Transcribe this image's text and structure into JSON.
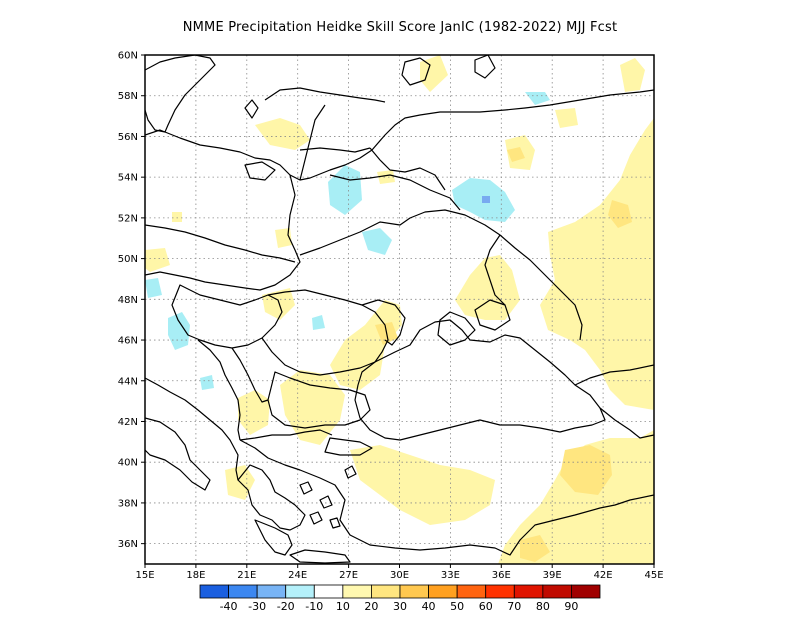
{
  "title": "NMME  Precipitation Heidke Skill Score JanIC (1982-2022) MJJ Fcst",
  "map": {
    "lon_range": [
      15,
      45
    ],
    "lat_range": [
      35,
      60
    ],
    "lon_ticks": [
      "15E",
      "18E",
      "21E",
      "24E",
      "27E",
      "30E",
      "33E",
      "36E",
      "39E",
      "42E",
      "45E"
    ],
    "lat_ticks": [
      "36N",
      "38N",
      "40N",
      "42N",
      "44N",
      "46N",
      "48N",
      "50N",
      "52N",
      "54N",
      "56N",
      "58N",
      "60N"
    ],
    "gridlines": true,
    "colors": {
      "land_outline": "#000000",
      "skill_10_20": "#fff6a8",
      "skill_20_30": "#ffe680",
      "skill_neg_10_20": "#a8eef5",
      "skill_neg_20_30": "#78aaf0"
    },
    "skill_areas": [
      {
        "name": "turkey-east-positive",
        "level": "10-20"
      },
      {
        "name": "russia-southeast-positive",
        "level": "10-20"
      },
      {
        "name": "volga-positive-core",
        "level": "20-30"
      },
      {
        "name": "belarus-negative",
        "level": "-10--20"
      },
      {
        "name": "bryansk-negative-core",
        "level": "-20--30"
      }
    ]
  },
  "colorbar": {
    "labels": [
      "-40",
      "-30",
      "-20",
      "-10",
      "10",
      "20",
      "30",
      "40",
      "50",
      "60",
      "70",
      "80",
      "90"
    ],
    "colors": [
      "#1a5fe0",
      "#3c87f0",
      "#78b4f5",
      "#b4f0fa",
      "#ffffff",
      "#fff8b0",
      "#ffe680",
      "#ffc850",
      "#ffa020",
      "#ff6410",
      "#ff3200",
      "#e01400",
      "#c00a00",
      "#a00000"
    ]
  }
}
